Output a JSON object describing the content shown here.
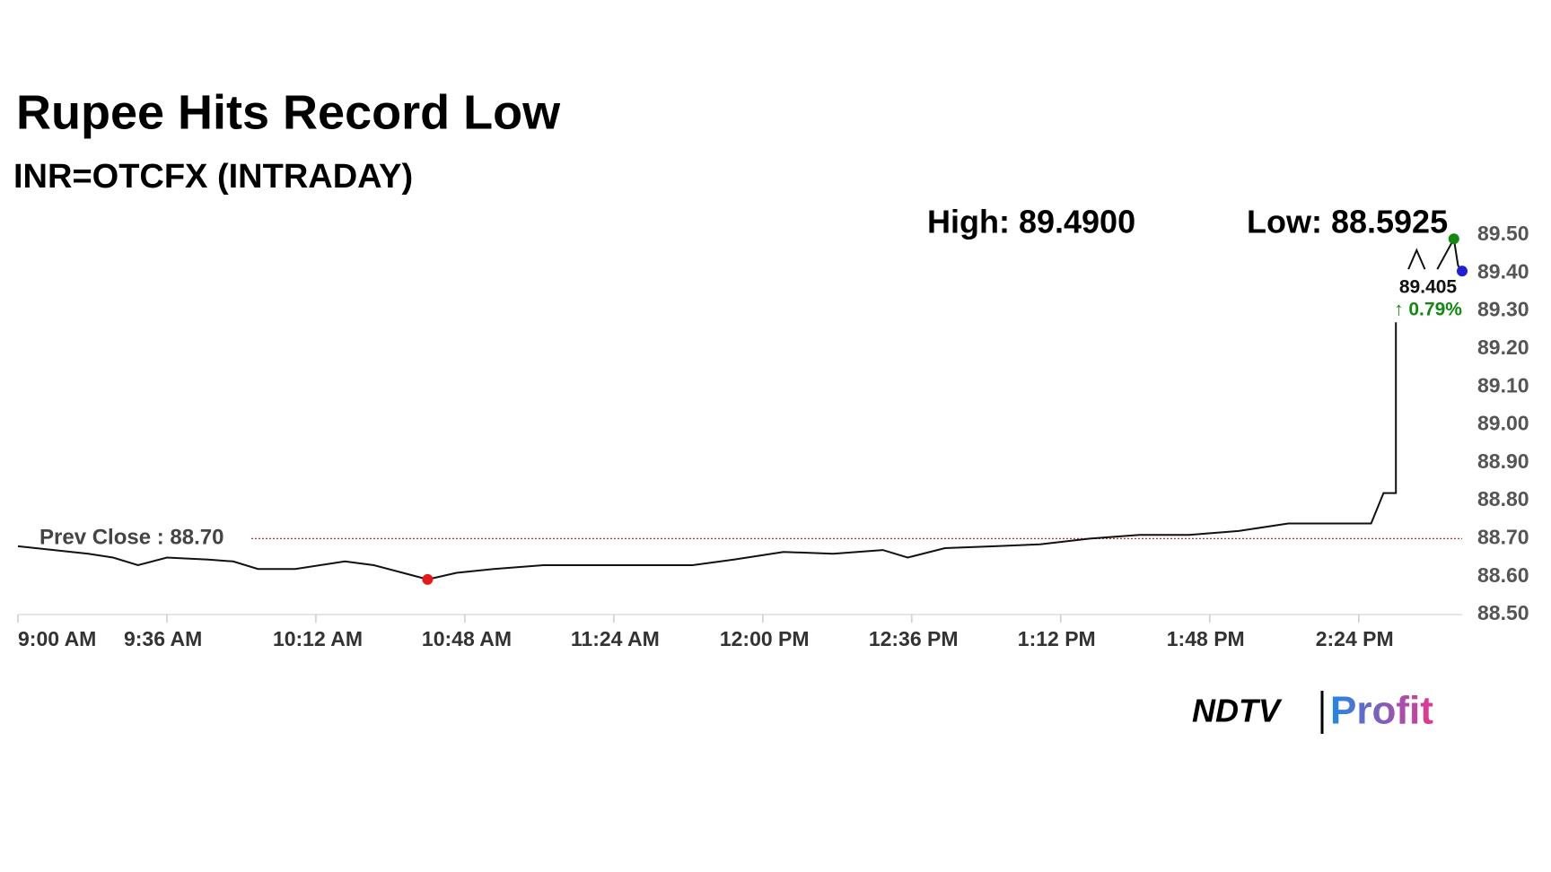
{
  "chart_data": {
    "type": "line",
    "title": "Rupee Hits Record Low",
    "subtitle": "INR=OTCFX (INTRADAY)",
    "high": {
      "label": "High: 89.4900",
      "value": 89.49,
      "color": "#128a12"
    },
    "low": {
      "label": "Low: 88.5925",
      "value": 88.5925,
      "color": "#e61919"
    },
    "last": {
      "value": 89.405,
      "color": "#1f1fd6"
    },
    "change": {
      "label": "↑ 0.79%",
      "value": 0.79,
      "color": "#128a12"
    },
    "prev_close": {
      "label": "Prev Close : 88.70",
      "value": 88.7,
      "color": "#b03030"
    },
    "xlim": [
      "9:00 AM",
      "2:49 PM"
    ],
    "xticks": [
      "9:00 AM",
      "9:36 AM",
      "10:12 AM",
      "10:48 AM",
      "11:24 AM",
      "12:00 PM",
      "12:36 PM",
      "1:12 PM",
      "1:48 PM",
      "2:24 PM"
    ],
    "ylim": [
      88.5,
      89.5
    ],
    "yticks": [
      {
        "value": 88.5,
        "label": "88.50"
      },
      {
        "value": 88.6,
        "label": "88.60"
      },
      {
        "value": 88.7,
        "label": "88.70"
      },
      {
        "value": 88.8,
        "label": "88.80"
      },
      {
        "value": 88.9,
        "label": "88.90"
      },
      {
        "value": 89.0,
        "label": "89.00"
      },
      {
        "value": 89.1,
        "label": "89.10"
      },
      {
        "value": 89.2,
        "label": "89.20"
      },
      {
        "value": 89.3,
        "label": "89.30"
      },
      {
        "value": 89.4,
        "label": "89.40"
      },
      {
        "value": 89.5,
        "label": "89.50"
      }
    ],
    "series": [
      {
        "name": "INR=OTCFX",
        "color": "#111111",
        "x": [
          "9:00 AM",
          "9:17 AM",
          "9:23 AM",
          "9:29 AM",
          "9:36 AM",
          "9:46 AM",
          "9:52 AM",
          "9:58 AM",
          "10:07 AM",
          "10:19 AM",
          "10:26 AM",
          "10:33 AM",
          "10:39 AM",
          "10:46 AM",
          "10:55 AM",
          "11:07 AM",
          "11:19 AM",
          "11:31 AM",
          "11:43 AM",
          "11:53 AM",
          "12:05 PM",
          "12:17 PM",
          "12:29 PM",
          "12:35 PM",
          "12:44 PM",
          "12:56 PM",
          "1:07 PM",
          "1:19 PM",
          "1:31 PM",
          "1:43 PM",
          "1:55 PM",
          "2:07 PM",
          "2:19 PM",
          "2:27 PM",
          "2:30 PM",
          "2:33 PM",
          "2:33 PM",
          "2:35 PM",
          "2:36 PM",
          "2:38 PM",
          "2:40 PM",
          "2:42 PM",
          "2:43 PM",
          "2:46 PM",
          "2:47 PM",
          "2:48 PM",
          "2:49 PM"
        ],
        "values": [
          88.68,
          88.66,
          88.65,
          88.63,
          88.65,
          88.645,
          88.64,
          88.62,
          88.62,
          88.64,
          88.63,
          88.61,
          88.5925,
          88.61,
          88.62,
          88.63,
          88.63,
          88.63,
          88.63,
          88.645,
          88.665,
          88.66,
          88.67,
          88.65,
          88.675,
          88.68,
          88.685,
          88.7,
          88.71,
          88.71,
          88.72,
          88.74,
          88.74,
          88.74,
          88.82,
          88.82,
          89.27,
          null,
          89.41,
          89.46,
          89.41,
          null,
          89.41,
          89.47,
          89.49,
          89.42,
          89.405
        ]
      }
    ],
    "logo": {
      "left": "NDTV",
      "right": "Profit"
    }
  }
}
